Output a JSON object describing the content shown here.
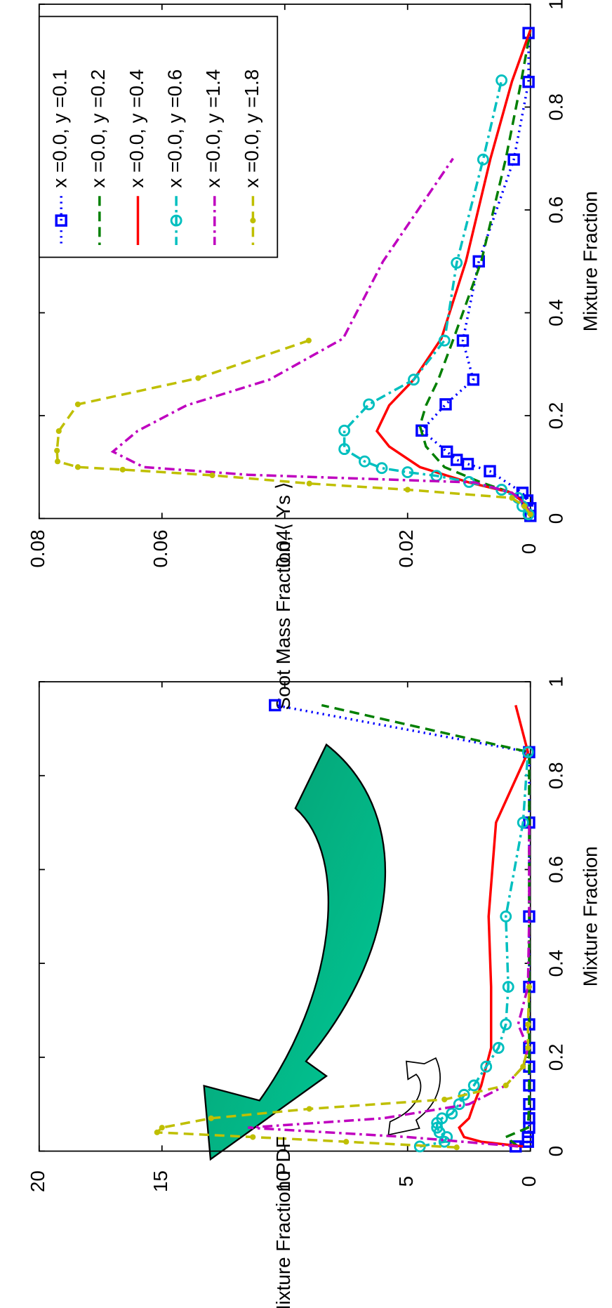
{
  "chart_data": [
    {
      "type": "line",
      "xlabel": "Mixture Fraction",
      "ylabel": "Soot Mass Fraction, ⟨ Ys ⟩",
      "xlim": [
        0,
        1
      ],
      "xticks": [
        0,
        0.2,
        0.4,
        0.6,
        0.8,
        1
      ],
      "ylim": [
        0,
        0.08
      ],
      "yticks": [
        0,
        0.02,
        0.04,
        0.06,
        0.08
      ],
      "legend": "upper right",
      "series": [
        {
          "name": "x =0.0, y =0.1",
          "color": "#0000ff",
          "dash": "dotted",
          "marker": "square",
          "x": [
            0.005,
            0.02,
            0.035,
            0.05,
            0.092,
            0.106,
            0.114,
            0.13,
            0.171,
            0.222,
            0.27,
            0.346,
            0.5,
            0.698,
            0.849,
            0.944
          ],
          "values": [
            0,
            0,
            0.0005,
            0.0013,
            0.0066,
            0.0102,
            0.012,
            0.0136,
            0.0177,
            0.0138,
            0.0093,
            0.011,
            0.0084,
            0.0027,
            0.0003,
            0.0003
          ]
        },
        {
          "name": "x =0.0, y =0.2",
          "color": "#007f00",
          "dash": "dashed",
          "marker": null,
          "x": [
            0.01,
            0.03,
            0.05,
            0.07,
            0.1,
            0.14,
            0.18,
            0.22,
            0.27,
            0.35,
            0.5,
            0.7,
            0.85,
            0.95
          ],
          "values": [
            0,
            0.001,
            0.003,
            0.008,
            0.014,
            0.017,
            0.018,
            0.017,
            0.015,
            0.0125,
            0.008,
            0.004,
            0.0015,
            0
          ]
        },
        {
          "name": "x =0.0, y =0.4",
          "color": "#ff0000",
          "dash": "solid",
          "marker": null,
          "x": [
            0.01,
            0.03,
            0.05,
            0.07,
            0.1,
            0.14,
            0.17,
            0.22,
            0.27,
            0.35,
            0.5,
            0.7,
            0.85,
            0.95
          ],
          "values": [
            0,
            0.001,
            0.003,
            0.01,
            0.018,
            0.023,
            0.025,
            0.023,
            0.019,
            0.0145,
            0.0105,
            0.0065,
            0.003,
            0
          ]
        },
        {
          "name": "x =0.0, y =0.6",
          "color": "#00bfbf",
          "dash": "dashdot",
          "marker": "circle",
          "x": [
            0.008,
            0.024,
            0.04,
            0.056,
            0.071,
            0.083,
            0.09,
            0.098,
            0.111,
            0.135,
            0.171,
            0.222,
            0.27,
            0.346,
            0.497,
            0.698,
            0.852
          ],
          "values": [
            0.0003,
            0.0013,
            0.002,
            0.0047,
            0.01,
            0.0153,
            0.02,
            0.0242,
            0.027,
            0.0303,
            0.0303,
            0.0263,
            0.019,
            0.014,
            0.012,
            0.0077,
            0.0047
          ]
        },
        {
          "name": "x =0.0, y =1.4",
          "color": "#bf00bf",
          "dash": "dashdot",
          "marker": null,
          "x": [
            0.01,
            0.03,
            0.05,
            0.07,
            0.085,
            0.1,
            0.13,
            0.17,
            0.22,
            0.27,
            0.35,
            0.5,
            0.7
          ],
          "values": [
            0,
            0.001,
            0.003,
            0.009,
            0.046,
            0.063,
            0.068,
            0.064,
            0.056,
            0.0425,
            0.0305,
            0.024,
            0.0126
          ]
        },
        {
          "name": "x =0.0, y =1.8",
          "color": "#bfbf00",
          "dash": "dashed",
          "marker": "dot",
          "x": [
            0.008,
            0.024,
            0.04,
            0.056,
            0.068,
            0.084,
            0.095,
            0.1,
            0.111,
            0.132,
            0.17,
            0.222,
            0.273,
            0.346
          ],
          "values": [
            0,
            0.001,
            0.003,
            0.02,
            0.036,
            0.0518,
            0.0664,
            0.0737,
            0.077,
            0.0771,
            0.0768,
            0.0737,
            0.0541,
            0.0361
          ]
        }
      ]
    },
    {
      "type": "line",
      "xlabel": "Mixture Fraction",
      "ylabel": "Mixture Fraction PDF",
      "xlim": [
        0,
        1
      ],
      "xticks": [
        0,
        0.2,
        0.4,
        0.6,
        0.8,
        1
      ],
      "ylim": [
        0,
        20
      ],
      "yticks": [
        0,
        5,
        10,
        15,
        20
      ],
      "series": [
        {
          "color": "#0000ff",
          "dash": "dotted",
          "marker": "square",
          "x": [
            0.01,
            0.02,
            0.03,
            0.05,
            0.07,
            0.1,
            0.14,
            0.18,
            0.22,
            0.27,
            0.35,
            0.5,
            0.7,
            0.85,
            0.95
          ],
          "values": [
            0.6,
            0.1,
            0.1,
            0.05,
            0.05,
            0.05,
            0.05,
            0.05,
            0.05,
            0.05,
            0.05,
            0.05,
            0.05,
            0.05,
            10.4
          ]
        },
        {
          "color": "#007f00",
          "dash": "dashed",
          "marker": null,
          "x": [
            0.01,
            0.03,
            0.05,
            0.1,
            0.2,
            0.35,
            0.5,
            0.7,
            0.85,
            0.95
          ],
          "values": [
            0.5,
            1.0,
            0.1,
            0.05,
            0.05,
            0.05,
            0.05,
            0.05,
            0.05,
            8.5
          ]
        },
        {
          "color": "#ff0000",
          "dash": "solid",
          "marker": null,
          "x": [
            0.01,
            0.02,
            0.03,
            0.05,
            0.07,
            0.1,
            0.14,
            0.18,
            0.22,
            0.27,
            0.35,
            0.5,
            0.7,
            0.85,
            0.95
          ],
          "values": [
            0.3,
            2.0,
            2.7,
            2.9,
            2.5,
            2.3,
            2.0,
            1.8,
            1.6,
            1.6,
            1.6,
            1.7,
            1.4,
            0.1,
            0.6
          ]
        },
        {
          "color": "#00bfbf",
          "dash": "dashdot",
          "marker": "circle",
          "x": [
            0.01,
            0.02,
            0.03,
            0.04,
            0.05,
            0.06,
            0.07,
            0.08,
            0.1,
            0.12,
            0.14,
            0.18,
            0.22,
            0.27,
            0.35,
            0.5,
            0.7,
            0.85
          ],
          "values": [
            4.5,
            3.5,
            3.4,
            3.7,
            3.8,
            3.8,
            3.6,
            3.2,
            2.9,
            2.7,
            2.3,
            1.8,
            1.3,
            1.0,
            0.9,
            1.0,
            0.3,
            0.1
          ]
        },
        {
          "color": "#bf00bf",
          "dash": "dashdot",
          "marker": null,
          "x": [
            0.01,
            0.03,
            0.05,
            0.07,
            0.1,
            0.14,
            0.18,
            0.22,
            0.27,
            0.35,
            0.5,
            0.7
          ],
          "values": [
            0.5,
            5.0,
            11.5,
            6.0,
            2.5,
            1.0,
            0.3,
            0.1,
            0.5,
            0.1,
            0.05,
            0.05
          ]
        },
        {
          "color": "#bfbf00",
          "dash": "dashed",
          "marker": "dot",
          "x": [
            0.008,
            0.02,
            0.03,
            0.04,
            0.05,
            0.07,
            0.09,
            0.11,
            0.14,
            0.18,
            0.22,
            0.27,
            0.35
          ],
          "values": [
            3.0,
            7.5,
            11.3,
            15.2,
            15.0,
            13.0,
            9.0,
            3.5,
            1.0,
            0.3,
            0.1,
            0.1,
            0.05
          ]
        }
      ]
    }
  ]
}
